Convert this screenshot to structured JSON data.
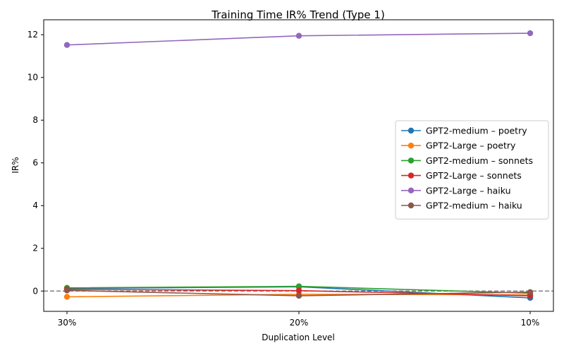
{
  "chart_data": {
    "type": "line",
    "title": "Training Time IR% Trend (Type 1)",
    "xlabel": "Duplication Level",
    "ylabel": "IR%",
    "categories": [
      "30%",
      "20%",
      "10%"
    ],
    "ylim": [
      -0.95,
      12.7
    ],
    "yticks": [
      0,
      2,
      4,
      6,
      8,
      10,
      12
    ],
    "grid": false,
    "legend_position": "center-right",
    "reference_line": {
      "y": 0,
      "style": "dashed",
      "color": "#808080"
    },
    "series": [
      {
        "name": "GPT2-medium – poetry",
        "color": "#1f77b4",
        "values": [
          0.12,
          0.2,
          -0.32
        ]
      },
      {
        "name": "GPT2-Large – poetry",
        "color": "#ff7f0e",
        "values": [
          -0.27,
          -0.15,
          -0.18
        ]
      },
      {
        "name": "GPT2-medium – sonnets",
        "color": "#2ca02c",
        "values": [
          0.15,
          0.22,
          -0.1
        ]
      },
      {
        "name": "GPT2-Large – sonnets",
        "color": "#d62728",
        "values": [
          0.08,
          0.02,
          -0.22
        ]
      },
      {
        "name": "GPT2-Large – haiku",
        "color": "#9467bd",
        "values": [
          11.52,
          11.95,
          12.07
        ]
      },
      {
        "name": "GPT2-medium – haiku",
        "color": "#8c564b",
        "values": [
          0.03,
          -0.22,
          -0.05
        ]
      }
    ]
  }
}
